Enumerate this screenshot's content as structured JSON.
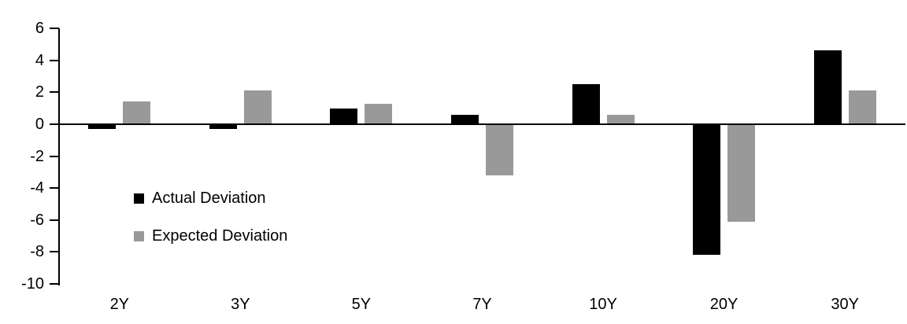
{
  "chart_data": {
    "type": "bar",
    "title": "",
    "xlabel": "",
    "ylabel": "",
    "categories": [
      "2Y",
      "3Y",
      "5Y",
      "7Y",
      "10Y",
      "20Y",
      "30Y"
    ],
    "series": [
      {
        "name": "Actual Deviation",
        "color": "#000000",
        "values": [
          -0.3,
          -0.3,
          1.0,
          0.6,
          2.5,
          -8.2,
          4.6
        ]
      },
      {
        "name": "Expected Deviation",
        "color": "#999999",
        "values": [
          1.4,
          2.1,
          1.3,
          -3.2,
          0.6,
          -6.1,
          2.1
        ]
      }
    ],
    "ylim": [
      -10,
      6
    ],
    "yticks": [
      6,
      4,
      2,
      0,
      -2,
      -4,
      -6,
      -8,
      -10
    ],
    "grid": false,
    "legend_position": "inside-left",
    "background_color": "#ffffff",
    "axis_color": "#000000"
  }
}
